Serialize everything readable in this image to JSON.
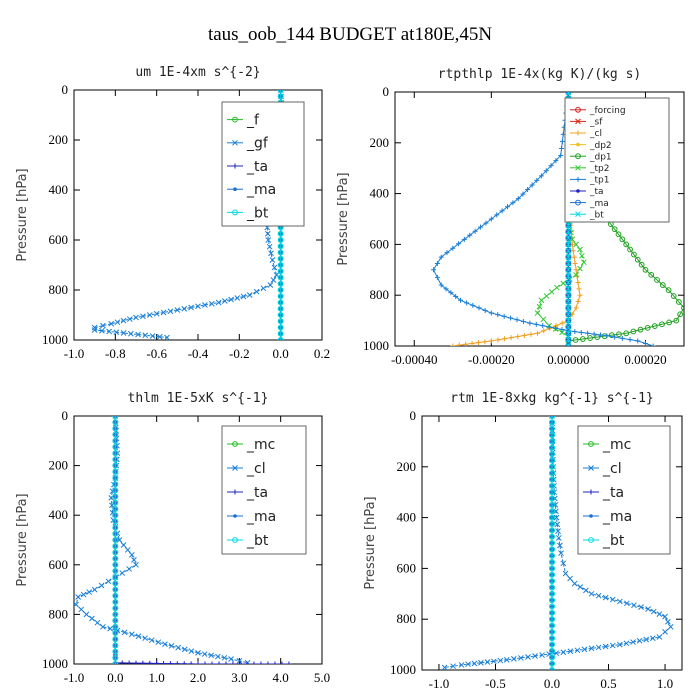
{
  "figure": {
    "title": "taus_oob_144  BUDGET at180E,45N"
  },
  "chart_data": [
    {
      "type": "line",
      "title": "um  1E-4xm s^{-2}",
      "ylabel": "Pressure [hPa]",
      "xlim": [
        -1.0,
        0.2
      ],
      "ylim": [
        1000,
        0
      ],
      "xticks": [
        "-1.0",
        "-0.8",
        "-0.6",
        "-0.4",
        "-0.2",
        "0.0",
        "0.2"
      ],
      "yticks": [
        "0",
        "200",
        "400",
        "600",
        "800",
        "1000"
      ],
      "legend_position": "top-right",
      "series": [
        {
          "name": "_f",
          "color": "#22bb22",
          "x": [
            0.0,
            0.0,
            0.0,
            0.0,
            0.0,
            0.0,
            0.0,
            0.0,
            0.0,
            0.0,
            0.0
          ],
          "y": [
            0,
            100,
            200,
            300,
            400,
            500,
            600,
            700,
            800,
            900,
            1000
          ]
        },
        {
          "name": "_gf",
          "color": "#1a7fd6",
          "x": [
            0.0,
            0.01,
            0.0,
            -0.01,
            -0.03,
            -0.06,
            -0.07,
            -0.06,
            -0.04,
            -0.02,
            -0.05,
            -0.15,
            -0.3,
            -0.5,
            -0.7,
            -0.82,
            -0.9,
            -0.9,
            -0.55
          ],
          "y": [
            0,
            130,
            200,
            280,
            350,
            420,
            500,
            600,
            680,
            740,
            780,
            820,
            850,
            880,
            910,
            935,
            950,
            960,
            990
          ]
        },
        {
          "name": "_ta",
          "color": "#2020c0",
          "x": [
            0.0,
            0.0,
            0.0,
            0.0,
            0.0,
            0.0,
            0.0,
            0.0,
            0.0,
            0.0,
            0.0
          ],
          "y": [
            0,
            100,
            200,
            300,
            400,
            500,
            600,
            700,
            800,
            900,
            1000
          ]
        },
        {
          "name": "_ma",
          "color": "#1a6fd0",
          "x": [
            0.0,
            0.0,
            0.0,
            0.0,
            0.0,
            0.0,
            0.0,
            0.0,
            0.0,
            0.0,
            0.0
          ],
          "y": [
            0,
            100,
            200,
            300,
            400,
            500,
            600,
            700,
            800,
            900,
            1000
          ]
        },
        {
          "name": "_bt",
          "color": "#00d8e8",
          "x": [
            0.0,
            0.0,
            0.0,
            0.0,
            0.0,
            0.0,
            0.0,
            0.0,
            0.0,
            0.0,
            0.0
          ],
          "y": [
            0,
            100,
            200,
            300,
            400,
            500,
            600,
            700,
            800,
            900,
            1000
          ]
        }
      ]
    },
    {
      "type": "line",
      "title": "rtpthlp  1E-4x(kg K)/(kg s)",
      "ylabel": "Pressure [hPa]",
      "xlim": [
        -0.00045,
        0.0003
      ],
      "ylim": [
        1000,
        0
      ],
      "xticks": [
        "-0.00040",
        "-0.00020",
        "0.00000",
        "0.00020"
      ],
      "xtick_values": [
        -0.0004,
        -0.0002,
        0.0,
        0.0002
      ],
      "yticks": [
        "0",
        "200",
        "400",
        "600",
        "800",
        "1000"
      ],
      "legend_position": "top-right",
      "series": [
        {
          "name": "_forcing",
          "color": "#d42020",
          "x": [
            0,
            0,
            0,
            0,
            0,
            0,
            0,
            0,
            0,
            0,
            0
          ],
          "y": [
            0,
            100,
            200,
            300,
            400,
            500,
            600,
            700,
            800,
            900,
            1000
          ]
        },
        {
          "name": "_sf",
          "color": "#e02010",
          "x": [
            0,
            0,
            0,
            0,
            0,
            0,
            0,
            0,
            0,
            0,
            0
          ],
          "y": [
            0,
            100,
            200,
            300,
            400,
            500,
            600,
            700,
            800,
            900,
            1000
          ]
        },
        {
          "name": "_cl",
          "color": "#f0a020",
          "x": [
            0.0,
            0.0,
            0.0,
            5e-06,
            1e-05,
            1.5e-05,
            2e-05,
            2.5e-05,
            3e-05,
            2e-05,
            0.0,
            -8e-05,
            -0.0002,
            -0.0003
          ],
          "y": [
            0,
            200,
            400,
            500,
            600,
            650,
            700,
            750,
            800,
            850,
            900,
            950,
            980,
            1000
          ]
        },
        {
          "name": "_dp2",
          "color": "#f0c020",
          "x": [
            0,
            0,
            0,
            0,
            0,
            0,
            0,
            0,
            0,
            0,
            0
          ],
          "y": [
            0,
            100,
            200,
            300,
            400,
            500,
            600,
            700,
            800,
            900,
            1000
          ]
        },
        {
          "name": "_dp1",
          "color": "#20a020",
          "x": [
            0.0,
            0.0,
            2e-05,
            6e-05,
            0.0001,
            0.00015,
            0.0002,
            0.00026,
            0.0003,
            0.00028,
            0.00015,
            0.0
          ],
          "y": [
            0,
            250,
            300,
            400,
            500,
            600,
            700,
            780,
            850,
            900,
            950,
            980
          ]
        },
        {
          "name": "_tp2",
          "color": "#30c830",
          "x": [
            0.0,
            0.0,
            0.0,
            1e-05,
            3e-05,
            4e-05,
            2e-05,
            -3e-05,
            -7e-05,
            -8e-05,
            -5e-05,
            0.0
          ],
          "y": [
            0,
            300,
            500,
            580,
            620,
            670,
            720,
            770,
            820,
            870,
            920,
            960
          ]
        },
        {
          "name": "_tp1",
          "color": "#1a7fd6",
          "x": [
            0.0,
            -2e-05,
            -7e-05,
            -0.00013,
            -0.0002,
            -0.00027,
            -0.00033,
            -0.00035,
            -0.00033,
            -0.00028,
            -0.0002,
            -0.0001,
            0.0,
            0.0001,
            0.00018,
            0.00022
          ],
          "y": [
            0,
            250,
            330,
            420,
            500,
            580,
            650,
            700,
            760,
            820,
            870,
            910,
            940,
            960,
            980,
            1000
          ]
        },
        {
          "name": "_ta",
          "color": "#2020c0",
          "x": [
            0,
            0,
            0,
            0,
            0,
            0,
            0,
            0,
            0,
            0,
            0
          ],
          "y": [
            0,
            100,
            200,
            300,
            400,
            500,
            600,
            700,
            800,
            900,
            1000
          ]
        },
        {
          "name": "_ma",
          "color": "#1a6fd0",
          "x": [
            0,
            0,
            0,
            0,
            0,
            0,
            0,
            0,
            0,
            0,
            0
          ],
          "y": [
            0,
            100,
            200,
            300,
            400,
            500,
            600,
            700,
            800,
            900,
            1000
          ]
        },
        {
          "name": "_bt",
          "color": "#00d8e8",
          "x": [
            0,
            0,
            0,
            0,
            0,
            0,
            0,
            0,
            0,
            0,
            0
          ],
          "y": [
            0,
            100,
            200,
            300,
            400,
            500,
            600,
            700,
            800,
            900,
            1000
          ]
        }
      ]
    },
    {
      "type": "line",
      "title": "thlm  1E-5xK s^{-1}",
      "ylabel": "Pressure [hPa]",
      "xlim": [
        -1.0,
        5.0
      ],
      "ylim": [
        1000,
        0
      ],
      "xticks": [
        "-1.0",
        "0.0",
        "1.0",
        "2.0",
        "3.0",
        "4.0",
        "5.0"
      ],
      "yticks": [
        "0",
        "200",
        "400",
        "600",
        "800",
        "1000"
      ],
      "legend_position": "top-right",
      "series": [
        {
          "name": "_mc",
          "color": "#22bb22",
          "x": [
            0,
            0,
            0,
            0,
            0,
            0,
            0,
            0,
            0,
            0,
            0
          ],
          "y": [
            0,
            100,
            200,
            300,
            400,
            500,
            600,
            700,
            800,
            900,
            1000
          ]
        },
        {
          "name": "_cl",
          "color": "#1a7fd6",
          "x": [
            0.0,
            0.05,
            0.0,
            -0.1,
            -0.05,
            0.1,
            0.4,
            0.5,
            0.0,
            -0.5,
            -0.9,
            -0.95,
            -0.7,
            -0.3,
            0.4,
            1.2,
            2.0,
            2.8,
            3.2
          ],
          "y": [
            0,
            150,
            250,
            330,
            420,
            500,
            560,
            600,
            650,
            700,
            730,
            760,
            800,
            850,
            880,
            920,
            955,
            980,
            995
          ]
        },
        {
          "name": "_ta",
          "color": "#2020c0",
          "x": [
            0,
            0,
            0,
            0,
            0,
            0,
            0,
            0,
            0,
            0,
            0,
            2.0,
            4.2
          ],
          "y": [
            0,
            100,
            200,
            300,
            400,
            500,
            600,
            700,
            800,
            900,
            995,
            1000,
            1000
          ]
        },
        {
          "name": "_ma",
          "color": "#1a6fd0",
          "x": [
            0,
            0,
            0,
            0,
            0,
            0,
            0,
            0,
            0,
            0,
            0
          ],
          "y": [
            0,
            100,
            200,
            300,
            400,
            500,
            600,
            700,
            800,
            900,
            1000
          ]
        },
        {
          "name": "_bt",
          "color": "#00d8e8",
          "x": [
            0,
            0,
            0,
            0,
            0,
            0,
            0,
            0,
            0,
            0,
            0
          ],
          "y": [
            0,
            100,
            200,
            300,
            400,
            500,
            600,
            700,
            800,
            900,
            1000
          ]
        }
      ]
    },
    {
      "type": "line",
      "title": "rtm  1E-8xkg kg^{-1} s^{-1}",
      "ylabel": "Pressure [hPa]",
      "xlim": [
        -1.15,
        1.15
      ],
      "ylim": [
        1000,
        0
      ],
      "xticks": [
        "-1.0",
        "-0.5",
        "0.0",
        "0.5",
        "1.0"
      ],
      "xtick_values": [
        -1.0,
        -0.5,
        0.0,
        0.5,
        1.0
      ],
      "yticks": [
        "0",
        "200",
        "400",
        "600",
        "800",
        "1000"
      ],
      "legend_position": "top-right",
      "series": [
        {
          "name": "_mc",
          "color": "#22bb22",
          "x": [
            0,
            0,
            0,
            0,
            0,
            0,
            0,
            0,
            0,
            0,
            0
          ],
          "y": [
            0,
            100,
            200,
            300,
            400,
            500,
            600,
            700,
            800,
            900,
            1000
          ]
        },
        {
          "name": "_cl",
          "color": "#1a7fd6",
          "x": [
            0.0,
            0.01,
            0.02,
            0.04,
            0.06,
            0.08,
            0.1,
            0.12,
            0.2,
            0.35,
            0.6,
            0.85,
            1.0,
            1.05,
            0.95,
            0.6,
            0.1,
            -0.4,
            -0.8,
            -0.95
          ],
          "y": [
            0,
            200,
            300,
            400,
            480,
            540,
            580,
            620,
            660,
            700,
            730,
            760,
            790,
            830,
            870,
            900,
            930,
            960,
            980,
            990
          ]
        },
        {
          "name": "_ta",
          "color": "#2020c0",
          "x": [
            0,
            0,
            0,
            0,
            0,
            0,
            0,
            0,
            0,
            0,
            0
          ],
          "y": [
            0,
            100,
            200,
            300,
            400,
            500,
            600,
            700,
            800,
            900,
            1000
          ]
        },
        {
          "name": "_ma",
          "color": "#1a6fd0",
          "x": [
            0,
            0,
            0,
            0,
            0,
            0,
            0,
            0,
            0,
            0,
            0
          ],
          "y": [
            0,
            100,
            200,
            300,
            400,
            500,
            600,
            700,
            800,
            900,
            1000
          ]
        },
        {
          "name": "_bt",
          "color": "#00d8e8",
          "x": [
            0,
            0,
            0,
            0,
            0,
            0,
            0,
            0,
            0,
            0,
            0
          ],
          "y": [
            0,
            100,
            200,
            300,
            400,
            500,
            600,
            700,
            800,
            900,
            1000
          ]
        }
      ]
    }
  ]
}
